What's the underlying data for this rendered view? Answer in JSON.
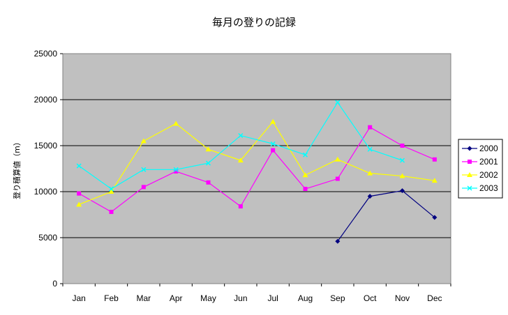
{
  "chart_data": {
    "type": "line",
    "title": "毎月の登りの記録",
    "xlabel": "",
    "ylabel": "登り積算値（m）",
    "categories": [
      "Jan",
      "Feb",
      "Mar",
      "Apr",
      "May",
      "Jun",
      "Jul",
      "Aug",
      "Sep",
      "Oct",
      "Nov",
      "Dec"
    ],
    "ylim": [
      0,
      25000
    ],
    "yticks": [
      0,
      5000,
      10000,
      15000,
      20000,
      25000
    ],
    "ytick_labels": [
      "0",
      "5000",
      "10000",
      "15000",
      "20000",
      "25000"
    ],
    "grid": "horizontal",
    "plot_background": "#c0c0c0",
    "legend_position": "right",
    "series": [
      {
        "name": "2000",
        "color": "#000080",
        "marker": "diamond",
        "values": [
          null,
          null,
          null,
          null,
          null,
          null,
          null,
          null,
          4600,
          9500,
          10100,
          7200
        ]
      },
      {
        "name": "2001",
        "color": "#ff00ff",
        "marker": "square",
        "values": [
          9800,
          7800,
          10500,
          12200,
          11000,
          8400,
          14500,
          10300,
          11400,
          17000,
          15000,
          13500
        ]
      },
      {
        "name": "2002",
        "color": "#ffff00",
        "marker": "triangle",
        "values": [
          8600,
          10000,
          15500,
          17400,
          14600,
          13400,
          17600,
          11800,
          13500,
          12000,
          11700,
          11200
        ]
      },
      {
        "name": "2003",
        "color": "#00ffff",
        "marker": "x",
        "values": [
          12800,
          10300,
          12400,
          12400,
          13100,
          16100,
          15200,
          14000,
          19700,
          14600,
          13400,
          null
        ]
      }
    ]
  }
}
